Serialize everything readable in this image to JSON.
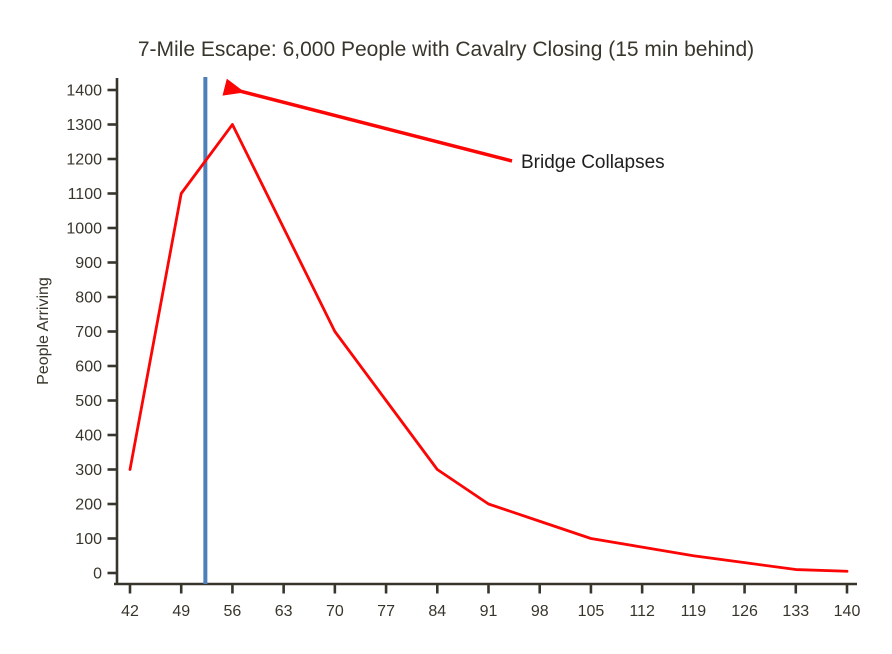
{
  "chart_data": {
    "type": "line",
    "title": "7-Mile Escape: 6,000 People with Cavalry Closing (15 min behind)",
    "xlabel": "",
    "ylabel": "People Arriving",
    "x": [
      42,
      49,
      56,
      63,
      70,
      77,
      84,
      91,
      98,
      105,
      112,
      119,
      126,
      133,
      140
    ],
    "series": [
      {
        "name": "People Arriving",
        "color": "#fb0505",
        "values": [
          300,
          1100,
          1300,
          1000,
          700,
          500,
          300,
          200,
          150,
          100,
          75,
          50,
          30,
          10,
          5
        ]
      }
    ],
    "x_ticks": [
      42,
      49,
      56,
      63,
      70,
      77,
      84,
      91,
      98,
      105,
      112,
      119,
      126,
      133,
      140
    ],
    "y_ticks": [
      0,
      100,
      200,
      300,
      400,
      500,
      600,
      700,
      800,
      900,
      1000,
      1100,
      1200,
      1300,
      1400
    ],
    "xlim": [
      42,
      140
    ],
    "ylim": [
      0,
      1400
    ],
    "grid": false,
    "legend_position": "none",
    "annotations": [
      {
        "type": "vline-with-arrow-callout",
        "label": "Bridge Collapses",
        "x_value": 52.3,
        "vline_color": "#4d80ba",
        "arrow_color": "#fb0505",
        "label_color": "#1f1f1f"
      }
    ]
  },
  "style": {
    "background": "#ffffff",
    "axis_color": "#38362c",
    "tick_label_color": "#38362c",
    "title_color": "#38362c",
    "series_line_color": "#fb0505",
    "vline_color": "#4d80ba",
    "arrow_color": "#fb0505"
  }
}
